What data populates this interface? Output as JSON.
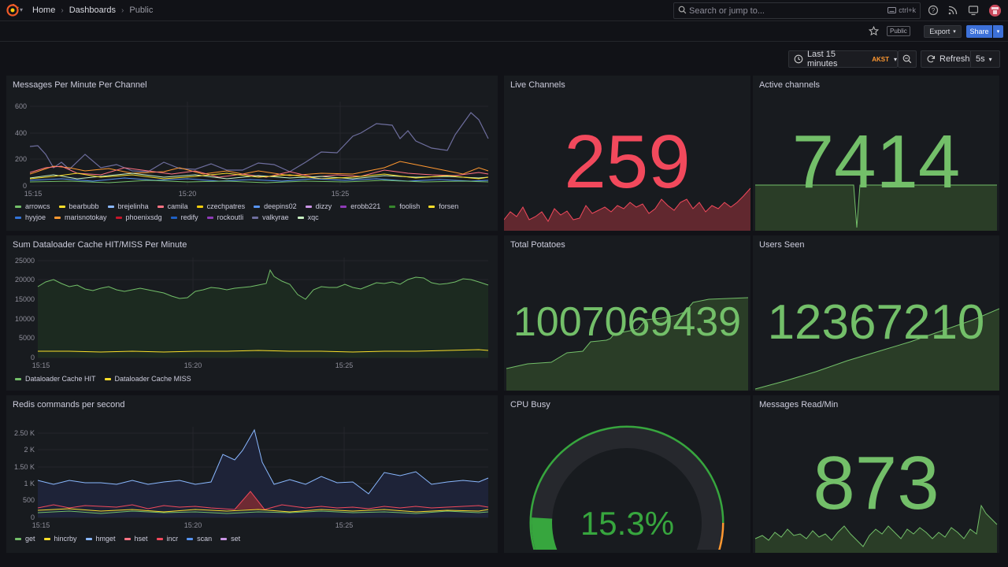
{
  "nav": {
    "breadcrumbs": [
      "Home",
      "Dashboards",
      "Public"
    ],
    "search_placeholder": "Search or jump to...",
    "search_shortcut": "ctrl+k"
  },
  "toolbar": {
    "public_badge": "Public",
    "export_label": "Export",
    "share_label": "Share",
    "time_range": "Last 15 minutes",
    "timezone": "AKST",
    "refresh_label": "Refresh",
    "refresh_interval": "5s"
  },
  "colors": {
    "green": "#73bf69",
    "red": "#f2495c",
    "yellow": "#fade2a",
    "blue": "#5794f2",
    "orange": "#ff9830",
    "purple": "#b877d9"
  },
  "panels": {
    "messages_per_minute": {
      "title": "Messages Per Minute Per Channel",
      "y_ticks": [
        "600",
        "400",
        "200",
        "0"
      ],
      "x_ticks": [
        "15:15",
        "15:20",
        "15:25"
      ],
      "legend": [
        {
          "name": "arrowcs",
          "color": "#73bf69"
        },
        {
          "name": "bearbubb",
          "color": "#fade2a"
        },
        {
          "name": "brejelinha",
          "color": "#8ab8ff"
        },
        {
          "name": "camila",
          "color": "#ff7383"
        },
        {
          "name": "czechpatres",
          "color": "#f2cc0c"
        },
        {
          "name": "deepins02",
          "color": "#5794f2"
        },
        {
          "name": "dizzy",
          "color": "#ca95e5"
        },
        {
          "name": "erobb221",
          "color": "#8f3bb8"
        },
        {
          "name": "foolish",
          "color": "#37872d"
        },
        {
          "name": "forsen",
          "color": "#fade2a"
        },
        {
          "name": "hyyjoe",
          "color": "#3274d9"
        },
        {
          "name": "marisnotokay",
          "color": "#ff9830"
        },
        {
          "name": "phoenixsdg",
          "color": "#c4162a"
        },
        {
          "name": "redify",
          "color": "#1f60c4"
        },
        {
          "name": "rockoutli",
          "color": "#8f3bb8"
        },
        {
          "name": "valkyrae",
          "color": "#6e6e9e"
        },
        {
          "name": "xqc",
          "color": "#c8f2c2"
        }
      ]
    },
    "live_channels": {
      "title": "Live Channels",
      "value": "259"
    },
    "active_channels": {
      "title": "Active channels",
      "value": "7414"
    },
    "dataloader": {
      "title": "Sum Dataloader Cache HIT/MISS Per Minute",
      "y_ticks": [
        "25000",
        "20000",
        "15000",
        "10000",
        "5000",
        "0"
      ],
      "x_ticks": [
        "15:15",
        "15:20",
        "15:25"
      ],
      "legend": [
        {
          "name": "Dataloader Cache HIT",
          "color": "#73bf69"
        },
        {
          "name": "Dataloader Cache MISS",
          "color": "#fade2a"
        }
      ]
    },
    "total_potatoes": {
      "title": "Total Potatoes",
      "value": "1007069439"
    },
    "users_seen": {
      "title": "Users Seen",
      "value": "12367210"
    },
    "redis": {
      "title": "Redis commands per second",
      "y_ticks": [
        "2.50 K",
        "2 K",
        "1.50 K",
        "1 K",
        "500",
        "0"
      ],
      "x_ticks": [
        "15:15",
        "15:20",
        "15:25"
      ],
      "legend": [
        {
          "name": "get",
          "color": "#73bf69"
        },
        {
          "name": "hincrby",
          "color": "#fade2a"
        },
        {
          "name": "hmget",
          "color": "#8ab8ff"
        },
        {
          "name": "hset",
          "color": "#ff7383"
        },
        {
          "name": "incr",
          "color": "#f2495c"
        },
        {
          "name": "scan",
          "color": "#5794f2"
        },
        {
          "name": "set",
          "color": "#ca95e5"
        }
      ]
    },
    "cpu_busy": {
      "title": "CPU Busy",
      "value": "15.3%",
      "percent": 15.3
    },
    "messages_read": {
      "title": "Messages Read/Min",
      "value": "873"
    }
  }
}
